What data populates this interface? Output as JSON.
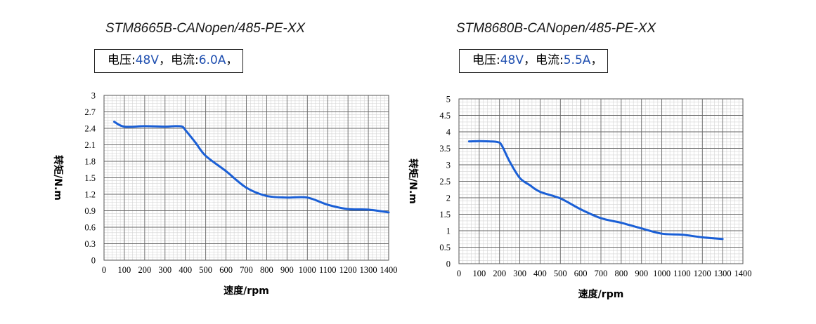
{
  "charts": [
    {
      "model": "STM8665B-CANopen/485-PE-XX",
      "spec": {
        "voltage_label": "电压:",
        "voltage": "48V",
        "sep": "，",
        "current_label": "电流:",
        "current": "6.0A",
        "end": "，"
      }
    },
    {
      "model": "STM8680B-CANopen/485-PE-XX",
      "spec": {
        "voltage_label": "电压:",
        "voltage": "48V",
        "sep": "，",
        "current_label": "电流:",
        "current": "5.5A",
        "end": "，"
      }
    }
  ],
  "colors": {
    "curve": "#1a5fd6",
    "grid_major": "#666666",
    "grid_minor": "#d4d4d4",
    "spec_value": "#1f4fb0"
  },
  "chart_data": [
    {
      "type": "line",
      "title": "STM8665B-CANopen/485-PE-XX",
      "xlabel": "速度/rpm",
      "ylabel": "转矩/N.m",
      "xlim": [
        0,
        1400
      ],
      "ylim": [
        0,
        3
      ],
      "xticks": [
        0,
        100,
        200,
        300,
        400,
        500,
        600,
        700,
        800,
        900,
        1000,
        1100,
        1200,
        1300,
        1400
      ],
      "xtick_labels": [
        "0",
        "100",
        "200",
        "300",
        "400",
        "500",
        "600",
        "700",
        "800",
        "900",
        "1000",
        "1100",
        "1200",
        "1300",
        "1400"
      ],
      "yticks": [
        0,
        0.3,
        0.6,
        0.9,
        1.2,
        1.5,
        1.8,
        2.1,
        2.4,
        2.7,
        3
      ],
      "ytick_labels": [
        "0",
        "0.3",
        "0.6",
        "0.9",
        "1.2",
        "1.5",
        "1.8",
        "2.1",
        "2.4",
        "2.7",
        "3"
      ],
      "series": [
        {
          "name": "torque",
          "x": [
            50,
            100,
            200,
            300,
            350,
            385,
            400,
            450,
            500,
            600,
            700,
            800,
            900,
            1000,
            1100,
            1200,
            1300,
            1400
          ],
          "y": [
            2.52,
            2.43,
            2.44,
            2.43,
            2.44,
            2.43,
            2.37,
            2.14,
            1.9,
            1.62,
            1.32,
            1.17,
            1.14,
            1.14,
            1.01,
            0.93,
            0.92,
            0.87
          ]
        }
      ]
    },
    {
      "type": "line",
      "title": "STM8680B-CANopen/485-PE-XX",
      "xlabel": "速度/rpm",
      "ylabel": "转矩/N.m",
      "xlim": [
        0,
        1400
      ],
      "ylim": [
        0,
        5
      ],
      "xticks": [
        0,
        100,
        200,
        300,
        400,
        500,
        600,
        700,
        800,
        900,
        1000,
        1100,
        1200,
        1300,
        1400
      ],
      "xtick_labels": [
        "0",
        "100",
        "200",
        "300",
        "400",
        "500",
        "600",
        "700",
        "800",
        "900",
        "1000",
        "1100",
        "1200",
        "1300",
        "1400"
      ],
      "yticks": [
        0,
        0.5,
        1,
        1.5,
        2,
        2.5,
        3,
        3.5,
        4,
        4.5,
        5
      ],
      "ytick_labels": [
        "0",
        "0.5",
        "1",
        "1.5",
        "2",
        "2.5",
        "3",
        "3.5",
        "4",
        "4.5",
        "5"
      ],
      "series": [
        {
          "name": "torque",
          "x": [
            50,
            100,
            150,
            190,
            210,
            250,
            300,
            350,
            400,
            500,
            600,
            700,
            800,
            900,
            1000,
            1100,
            1200,
            1300
          ],
          "y": [
            3.71,
            3.72,
            3.71,
            3.69,
            3.6,
            3.1,
            2.6,
            2.38,
            2.18,
            1.98,
            1.65,
            1.38,
            1.24,
            1.07,
            0.91,
            0.88,
            0.8,
            0.75
          ]
        }
      ]
    }
  ]
}
